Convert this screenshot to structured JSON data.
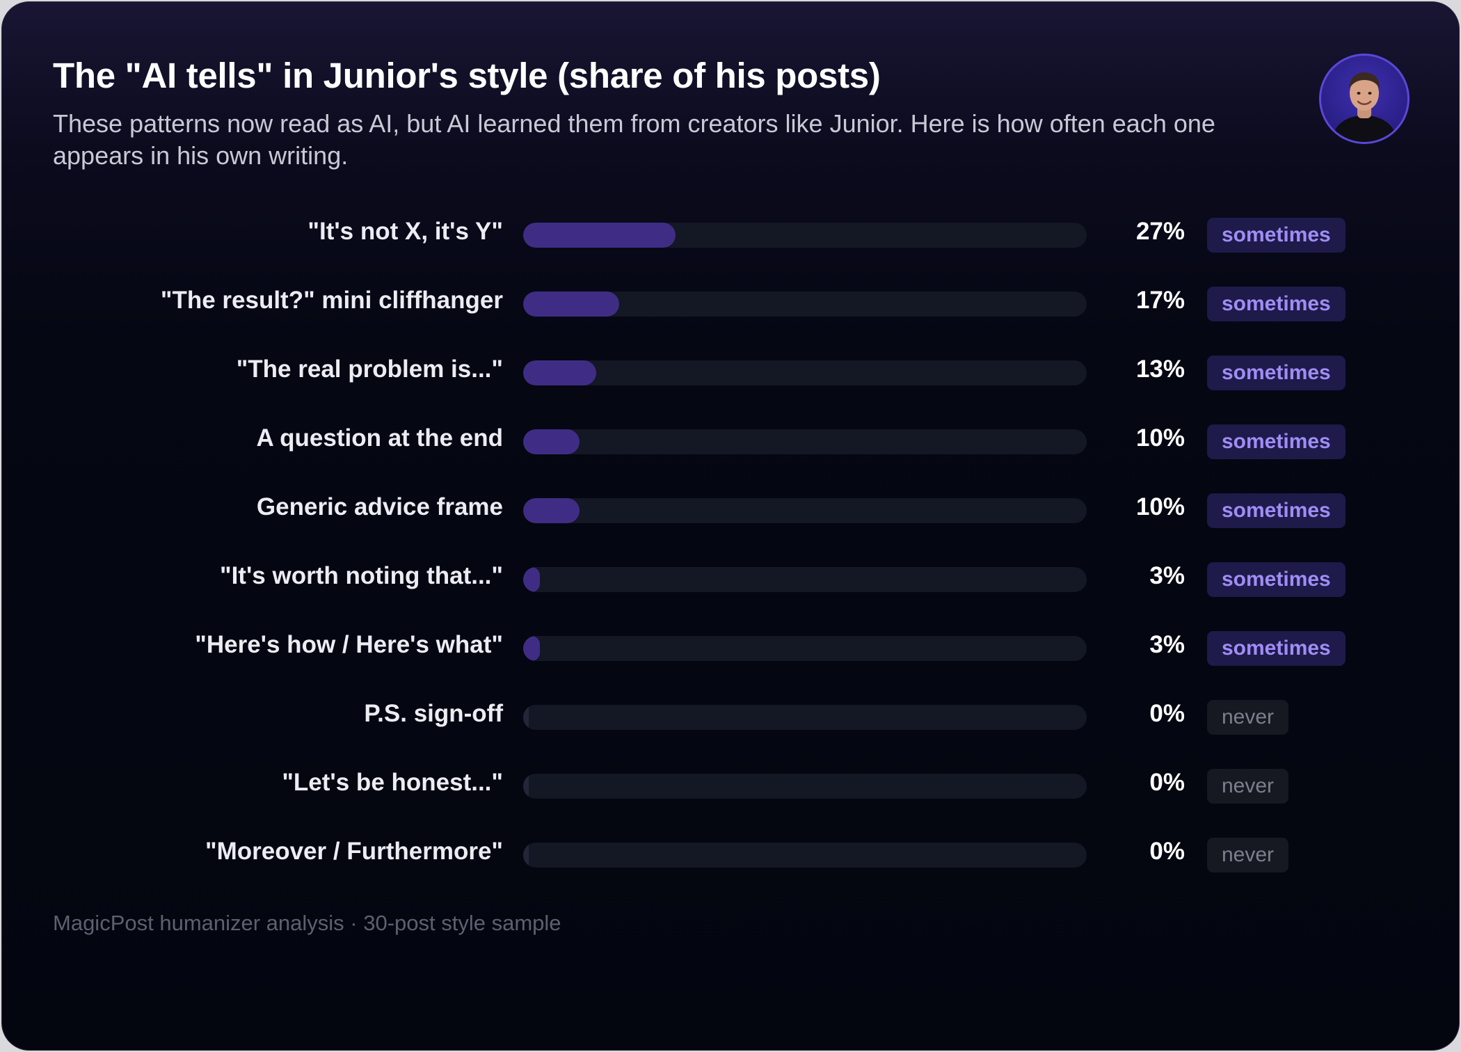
{
  "header": {
    "title": "The \"AI tells\" in Junior's style (share of his posts)",
    "subtitle": "These patterns now read as AI, but AI learned them from creators like Junior. Here is how often each one appears in his own writing."
  },
  "avatar": {
    "icon": "person-portrait-icon"
  },
  "colors": {
    "background": "#03060f",
    "bar_fill": "#3f2d85",
    "bar_track": "#141724",
    "badge_sometimes_bg": "#1e1a4a",
    "badge_sometimes_text": "#9f8df5",
    "badge_never_bg": "#161822",
    "badge_never_text": "#7d7f8d"
  },
  "chart_data": {
    "type": "bar",
    "orientation": "horizontal",
    "title": "The \"AI tells\" in Junior's style (share of his posts)",
    "xlim": [
      0,
      100
    ],
    "unit": "%",
    "grid": false,
    "categories": [
      "\"It's not X, it's Y\"",
      "\"The result?\" mini cliffhanger",
      "\"The real problem is...\"",
      "A question at the end",
      "Generic advice frame",
      "\"It's worth noting that...\"",
      "\"Here's how / Here's what\"",
      "P.S. sign-off",
      "\"Let's be honest...\"",
      "\"Moreover / Furthermore\""
    ],
    "values": [
      27,
      17,
      13,
      10,
      10,
      3,
      3,
      0,
      0,
      0
    ],
    "value_labels": [
      "27%",
      "17%",
      "13%",
      "10%",
      "10%",
      "3%",
      "3%",
      "0%",
      "0%",
      "0%"
    ],
    "frequency_tags": [
      "sometimes",
      "sometimes",
      "sometimes",
      "sometimes",
      "sometimes",
      "sometimes",
      "sometimes",
      "never",
      "never",
      "never"
    ]
  },
  "footer": {
    "note": "MagicPost humanizer analysis · 30-post style sample"
  }
}
